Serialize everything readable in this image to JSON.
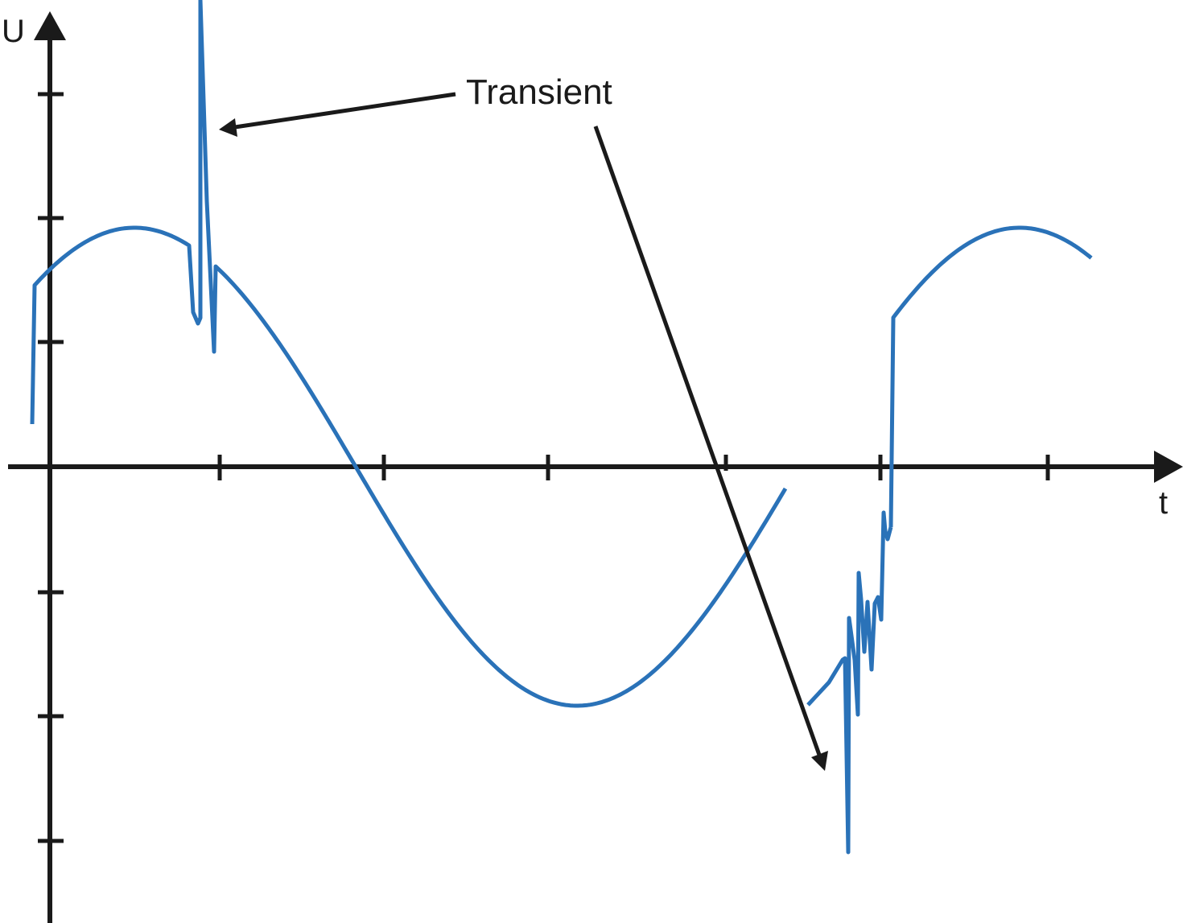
{
  "labels": {
    "y_axis": "U",
    "x_axis": "t",
    "annotation": "Transient"
  },
  "colors": {
    "signal": "#2a72b8",
    "axes": "#1a1a1a",
    "annotation": "#1a1a1a"
  }
}
